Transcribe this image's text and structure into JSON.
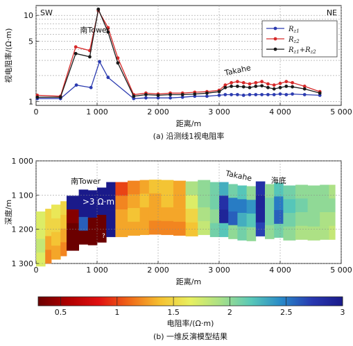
{
  "chart_data": [
    {
      "type": "line",
      "panel_label": "(a) 沿测线1视电阻率",
      "xlabel": "距离/m",
      "ylabel": "视电阻率/(Ω·m)",
      "yscale": "log",
      "xlim": [
        0,
        5000
      ],
      "ylim": [
        0.9,
        13
      ],
      "x_ticks": [
        "0",
        "1 000",
        "2 000",
        "3 000",
        "4 000",
        "5 000"
      ],
      "y_ticks": [
        "1",
        "5",
        "10"
      ],
      "grid": true,
      "legend_position": "top-right",
      "corner_labels": {
        "left": "SW",
        "right": "NE"
      },
      "annotations": [
        "南Tower",
        "Takahe"
      ],
      "series": [
        {
          "name_parts": [
            "R",
            "z1",
            ""
          ],
          "color": "#2b3bb0",
          "marker": "circle",
          "x": [
            20,
            400,
            660,
            900,
            1040,
            1180,
            1600,
            1800,
            2000,
            2200,
            2400,
            2600,
            2800,
            3000,
            3100,
            3200,
            3300,
            3400,
            3500,
            3600,
            3700,
            3800,
            3900,
            4000,
            4100,
            4200,
            4400,
            4650
          ],
          "y": [
            1.08,
            1.08,
            1.55,
            1.45,
            2.9,
            1.9,
            1.08,
            1.1,
            1.1,
            1.1,
            1.12,
            1.15,
            1.15,
            1.18,
            1.2,
            1.2,
            1.2,
            1.18,
            1.2,
            1.2,
            1.2,
            1.2,
            1.2,
            1.22,
            1.2,
            1.22,
            1.2,
            1.18
          ]
        },
        {
          "name_parts": [
            "R",
            "z2",
            ""
          ],
          "color": "#d62a2a",
          "marker": "circle",
          "x": [
            20,
            400,
            650,
            880,
            1020,
            1180,
            1340,
            1600,
            1800,
            2000,
            2200,
            2400,
            2600,
            2800,
            3000,
            3100,
            3200,
            3300,
            3400,
            3500,
            3600,
            3700,
            3800,
            3900,
            4000,
            4100,
            4200,
            4400,
            4650
          ],
          "y": [
            1.18,
            1.15,
            4.3,
            3.9,
            11.4,
            7.2,
            3.2,
            1.2,
            1.25,
            1.22,
            1.25,
            1.25,
            1.28,
            1.3,
            1.35,
            1.55,
            1.65,
            1.7,
            1.65,
            1.6,
            1.65,
            1.7,
            1.6,
            1.55,
            1.62,
            1.7,
            1.65,
            1.5,
            1.3
          ]
        },
        {
          "name_parts": [
            "R",
            "z1",
            "+R",
            "z2",
            ""
          ],
          "color": "#1a1a1a",
          "marker": "circle",
          "x": [
            20,
            400,
            650,
            880,
            1020,
            1180,
            1340,
            1600,
            1800,
            2000,
            2200,
            2400,
            2600,
            2800,
            3000,
            3100,
            3200,
            3300,
            3400,
            3500,
            3600,
            3700,
            3800,
            3900,
            4000,
            4100,
            4200,
            4400,
            4650
          ],
          "y": [
            1.12,
            1.12,
            3.6,
            3.3,
            11.8,
            6.4,
            2.8,
            1.15,
            1.2,
            1.18,
            1.2,
            1.2,
            1.22,
            1.25,
            1.3,
            1.45,
            1.5,
            1.5,
            1.48,
            1.45,
            1.5,
            1.52,
            1.45,
            1.4,
            1.45,
            1.5,
            1.48,
            1.4,
            1.25
          ]
        }
      ]
    },
    {
      "type": "heatmap",
      "panel_label": "(b) 一维反演模型结果",
      "xlabel": "距离/m",
      "ylabel": "深度/m",
      "xlim": [
        0,
        5000
      ],
      "ylim": [
        1000,
        1300
      ],
      "x_ticks": [
        "0",
        "1 000",
        "2 000",
        "3 000",
        "4 000",
        "5 000"
      ],
      "y_ticks": [
        "1 000",
        "1 100",
        "1 200",
        "1 300"
      ],
      "colorbar": {
        "label": "电阻率/(Ω·m)",
        "range": [
          0.3,
          3
        ],
        "ticks": [
          "0.5",
          "1",
          "1.5",
          "2",
          "2.5",
          "3"
        ],
        "colors": [
          "#6b0000",
          "#b00000",
          "#e01010",
          "#f06818",
          "#f5c030",
          "#e8f060",
          "#a8e088",
          "#58c8b8",
          "#2888c8",
          "#2838b0",
          "#1a1a8a"
        ]
      },
      "annotations": [
        "南Tower",
        "Takahe",
        "海底",
        ">3 Ω·m",
        "?"
      ],
      "columns": [
        {
          "x": 0,
          "top": 1148,
          "values": [
            1.7,
            1.7,
            1.8,
            1.7
          ]
        },
        {
          "x": 150,
          "top": 1140,
          "values": [
            1.5,
            1.5,
            1.3,
            1.2
          ]
        },
        {
          "x": 250,
          "top": 1128,
          "values": [
            1.6,
            1.5,
            1.4,
            1.3
          ]
        },
        {
          "x": 400,
          "top": 1118,
          "values": [
            1.5,
            1.4,
            1.3,
            1.2
          ]
        },
        {
          "x": 500,
          "top": 1102,
          "values": [
            3.0,
            0.4,
            0.3,
            0.2
          ]
        },
        {
          "x": 700,
          "top": 1084,
          "values": [
            3.0,
            3.0,
            2.6,
            0.3
          ]
        },
        {
          "x": 850,
          "top": 1086,
          "values": [
            3.0,
            3.0,
            0.3,
            0.2
          ]
        },
        {
          "x": 1000,
          "top": 1078,
          "values": [
            3.0,
            3.0,
            0.2,
            0.2
          ]
        },
        {
          "x": 1150,
          "top": 1062,
          "values": [
            3.0,
            3.0,
            3.0,
            3.0
          ]
        },
        {
          "x": 1300,
          "top": 1062,
          "values": [
            1.0,
            1.2,
            1.3,
            1.3
          ]
        },
        {
          "x": 1500,
          "top": 1058,
          "values": [
            1.2,
            1.3,
            1.4,
            1.3
          ]
        },
        {
          "x": 1700,
          "top": 1056,
          "values": [
            1.3,
            1.4,
            1.3,
            1.3
          ]
        },
        {
          "x": 1850,
          "top": 1055,
          "values": [
            1.4,
            1.3,
            1.3,
            1.2
          ]
        },
        {
          "x": 2050,
          "top": 1056,
          "values": [
            1.4,
            1.4,
            1.3,
            1.2
          ]
        },
        {
          "x": 2250,
          "top": 1058,
          "values": [
            1.3,
            1.3,
            1.3,
            1.2
          ]
        },
        {
          "x": 2450,
          "top": 1060,
          "values": [
            1.9,
            1.7,
            1.5,
            1.4
          ]
        },
        {
          "x": 2650,
          "top": 1056,
          "values": [
            2.0,
            2.0,
            1.9,
            1.8
          ]
        },
        {
          "x": 2850,
          "top": 1062,
          "values": [
            2.1,
            2.1,
            2.0,
            2.1
          ]
        },
        {
          "x": 3000,
          "top": 1062,
          "values": [
            2.3,
            2.8,
            2.9,
            2.2
          ]
        },
        {
          "x": 3150,
          "top": 1068,
          "values": [
            2.1,
            2.5,
            2.6,
            2.0
          ]
        },
        {
          "x": 3300,
          "top": 1072,
          "values": [
            2.2,
            2.5,
            2.3,
            2.1
          ]
        },
        {
          "x": 3450,
          "top": 1074,
          "values": [
            2.0,
            2.4,
            2.2,
            2.0
          ]
        },
        {
          "x": 3600,
          "top": 1060,
          "values": [
            2.8,
            2.9,
            2.9,
            2.7
          ]
        },
        {
          "x": 3750,
          "top": 1068,
          "values": [
            2.0,
            2.1,
            2.1,
            2.0
          ]
        },
        {
          "x": 3900,
          "top": 1064,
          "values": [
            2.2,
            2.5,
            2.6,
            2.1
          ]
        },
        {
          "x": 4050,
          "top": 1072,
          "values": [
            2.1,
            2.2,
            2.1,
            2.0
          ]
        },
        {
          "x": 4250,
          "top": 1070,
          "values": [
            2.0,
            2.1,
            2.0,
            1.9
          ]
        },
        {
          "x": 4450,
          "top": 1072,
          "values": [
            2.0,
            2.0,
            2.0,
            1.9
          ]
        },
        {
          "x": 4650,
          "top": 1070,
          "values": [
            2.0,
            2.0,
            1.9,
            1.9
          ]
        },
        {
          "x": 4800,
          "top": 1070,
          "values": [
            1.9,
            2.0,
            1.9,
            1.8
          ]
        }
      ],
      "layer_bounds": [
        0,
        40,
        80,
        120,
        160
      ],
      "profile_end_x": 4900
    }
  ]
}
